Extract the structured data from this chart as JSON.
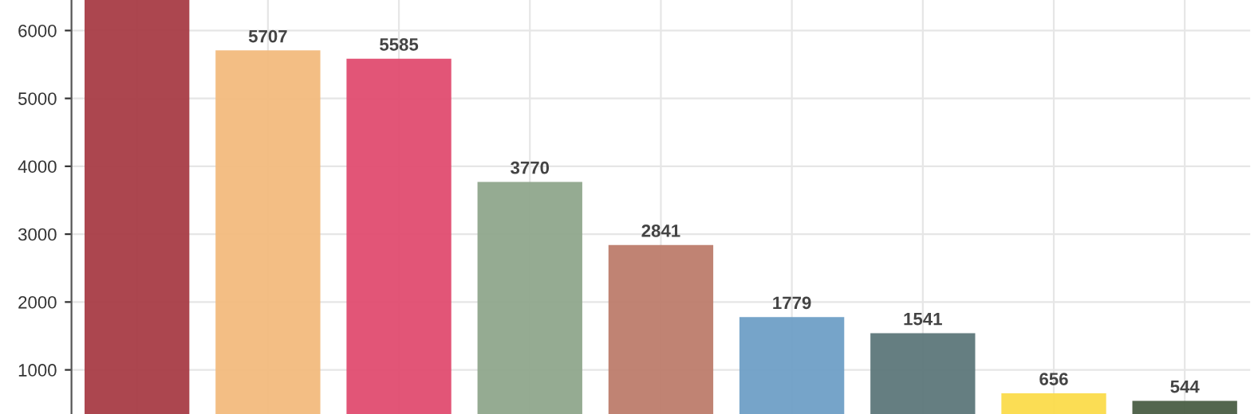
{
  "chart_data": {
    "type": "bar",
    "categories": [
      null,
      null,
      null,
      null,
      null,
      null,
      null,
      null,
      null
    ],
    "values": [
      6450,
      5707,
      5585,
      3770,
      2841,
      1779,
      1541,
      656,
      544
    ],
    "colors": [
      "#a83c46",
      "#f2bb7d",
      "#e04c70",
      "#8fa68c",
      "#bd7c6c",
      "#6f9fc6",
      "#5d777a",
      "#fbdb4b",
      "#4a5e44"
    ],
    "value_labels": [
      null,
      "5707",
      "5585",
      "3770",
      "2841",
      "1779",
      "1541",
      "656",
      "544"
    ],
    "ylim": [
      350,
      6450
    ],
    "yticks": [
      1000,
      2000,
      3000,
      4000,
      5000,
      6000
    ],
    "grid": true
  }
}
